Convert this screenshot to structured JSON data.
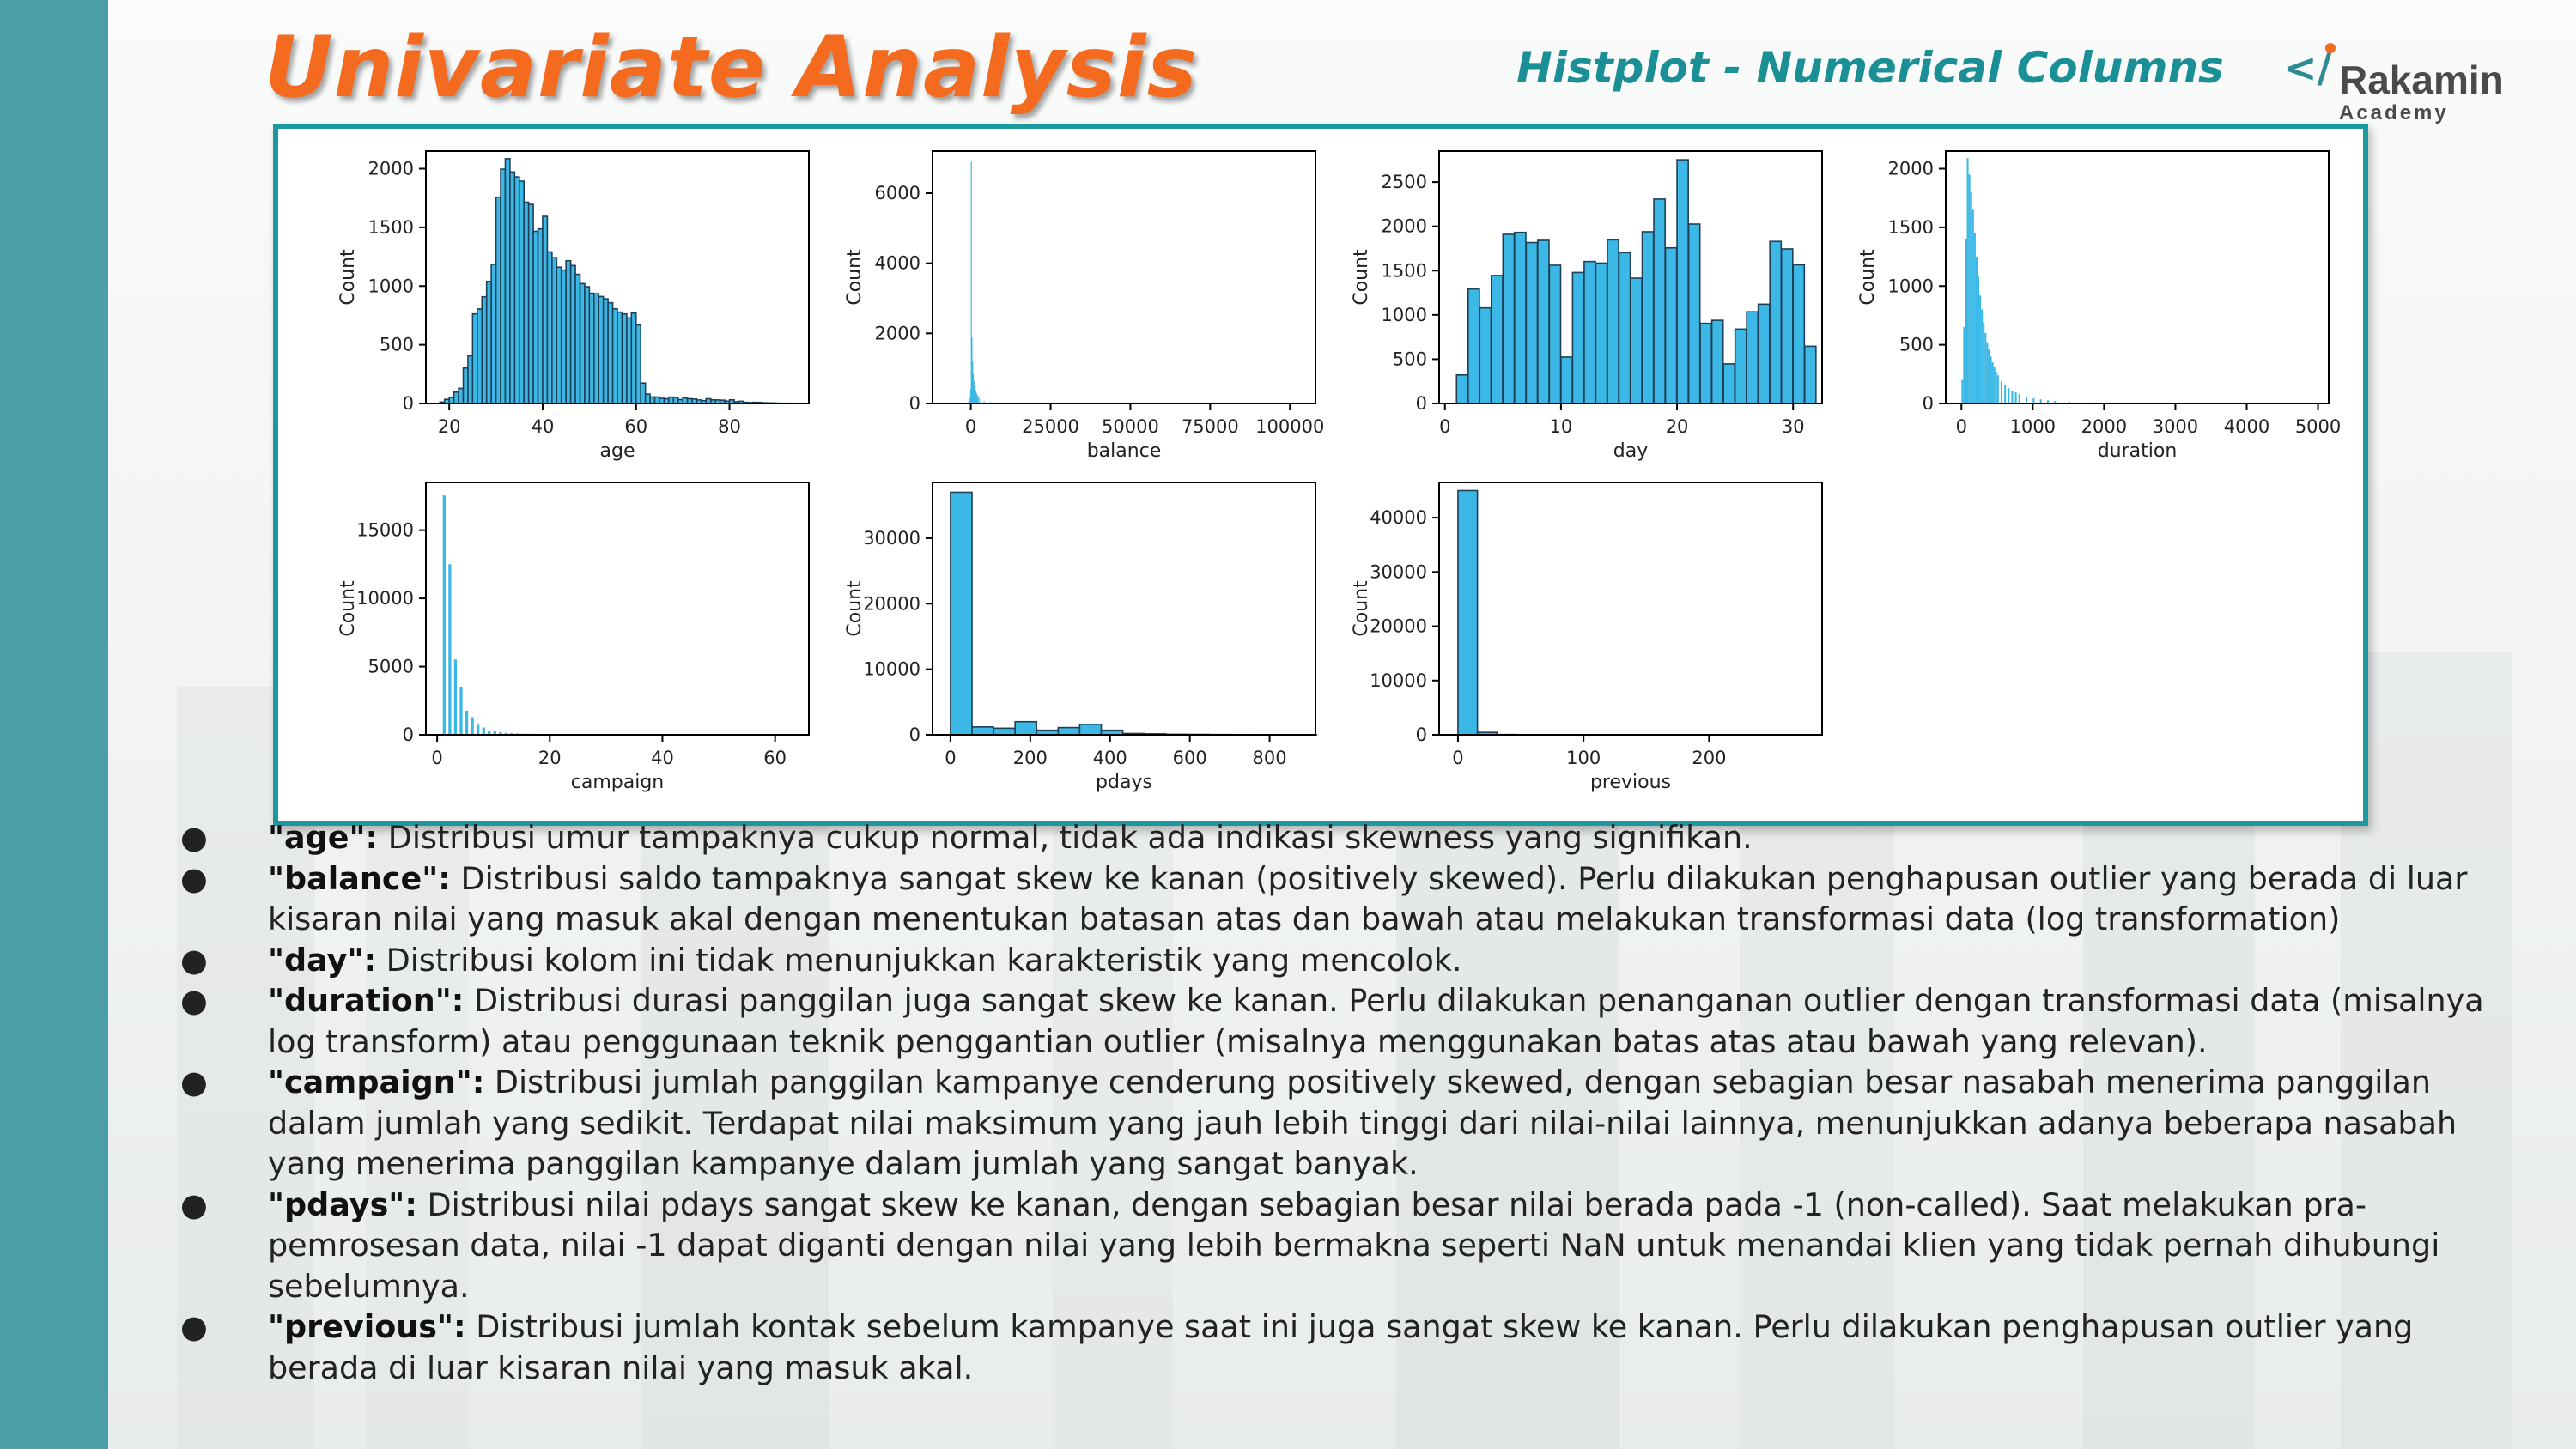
{
  "slide": {
    "title": "Univariate Analysis",
    "subtitle": "Histplot - Numerical Columns",
    "brand": {
      "mark": "</",
      "name": "Rakamin",
      "sub": "Academy",
      "accent": "#f46a1f",
      "teal": "#1a9a9f"
    }
  },
  "chart_data": [
    {
      "type": "bar",
      "name": "age",
      "xlabel": "age",
      "ylabel": "Count",
      "xlim": [
        15,
        97
      ],
      "ylim": [
        0,
        2150
      ],
      "xticks": [
        20,
        40,
        60,
        80
      ],
      "yticks": [
        0,
        500,
        1000,
        1500,
        2000
      ],
      "bin_width": 1.0,
      "x": [
        18,
        19,
        20,
        21,
        22,
        23,
        24,
        25,
        26,
        27,
        28,
        29,
        30,
        31,
        32,
        33,
        34,
        35,
        36,
        37,
        38,
        39,
        40,
        41,
        42,
        43,
        44,
        45,
        46,
        47,
        48,
        49,
        50,
        51,
        52,
        53,
        54,
        55,
        56,
        57,
        58,
        59,
        60,
        61,
        62,
        63,
        64,
        65,
        66,
        67,
        68,
        69,
        70,
        71,
        72,
        73,
        74,
        75,
        76,
        77,
        78,
        79,
        80,
        81,
        82,
        83,
        84,
        85,
        86,
        87,
        88,
        89,
        90,
        91,
        92,
        93,
        94
      ],
      "values": [
        12,
        35,
        50,
        97,
        129,
        302,
        405,
        763,
        805,
        909,
        1040,
        1185,
        1757,
        1996,
        2085,
        1972,
        1930,
        1894,
        1715,
        1696,
        1466,
        1487,
        1594,
        1291,
        1242,
        1161,
        1136,
        1216,
        1175,
        1100,
        1021,
        994,
        939,
        935,
        911,
        891,
        858,
        806,
        778,
        762,
        729,
        770,
        669,
        174,
        80,
        55,
        55,
        44,
        40,
        54,
        52,
        33,
        47,
        40,
        38,
        30,
        24,
        40,
        31,
        30,
        28,
        20,
        31,
        15,
        19,
        10,
        8,
        10,
        9,
        6,
        5,
        4,
        3,
        2,
        2,
        1,
        1
      ]
    },
    {
      "type": "bar",
      "name": "balance",
      "xlabel": "balance",
      "ylabel": "Count",
      "xlim": [
        -12000,
        108000
      ],
      "ylim": [
        0,
        7200
      ],
      "xticks": [
        0,
        25000,
        50000,
        75000,
        100000
      ],
      "yticks": [
        0,
        2000,
        4000,
        6000
      ],
      "bin_width": 200,
      "x": [
        -800,
        -600,
        -400,
        -200,
        0,
        200,
        400,
        600,
        800,
        1000,
        1200,
        1400,
        1600,
        1800,
        2000,
        2400,
        3000,
        4000,
        6000,
        9000
      ],
      "values": [
        30,
        70,
        160,
        420,
        6900,
        1880,
        1200,
        850,
        650,
        520,
        420,
        350,
        300,
        250,
        220,
        170,
        120,
        70,
        35,
        15
      ]
    },
    {
      "type": "bar",
      "name": "day",
      "xlabel": "day",
      "ylabel": "Count",
      "xlim": [
        -0.5,
        32.5
      ],
      "ylim": [
        0,
        2850
      ],
      "xticks": [
        0,
        10,
        20,
        30
      ],
      "yticks": [
        0,
        500,
        1000,
        1500,
        2000,
        2500
      ],
      "bin_width": 0.97,
      "x": [
        1,
        2,
        3,
        4,
        5,
        6,
        7,
        8,
        9,
        10,
        11,
        12,
        13,
        14,
        15,
        16,
        17,
        18,
        19,
        20,
        21,
        22,
        23,
        24,
        25,
        26,
        27,
        28,
        29,
        30,
        31
      ],
      "values": [
        322,
        1293,
        1079,
        1445,
        1910,
        1932,
        1817,
        1842,
        1561,
        524,
        1479,
        1603,
        1585,
        1848,
        1703,
        1415,
        1939,
        2308,
        1757,
        2752,
        2026,
        905,
        939,
        447,
        840,
        1035,
        1121,
        1830,
        1745,
        1566,
        646
      ]
    },
    {
      "type": "bar",
      "name": "duration",
      "xlabel": "duration",
      "ylabel": "Count",
      "xlim": [
        -220,
        5150
      ],
      "ylim": [
        0,
        2150
      ],
      "xticks": [
        0,
        1000,
        2000,
        3000,
        4000,
        5000
      ],
      "yticks": [
        0,
        500,
        1000,
        1500,
        2000
      ],
      "bin_width": 25,
      "x": [
        0,
        25,
        50,
        75,
        100,
        125,
        150,
        175,
        200,
        225,
        250,
        275,
        300,
        325,
        350,
        375,
        400,
        425,
        450,
        475,
        500,
        550,
        600,
        650,
        700,
        750,
        800,
        900,
        1000,
        1100,
        1200,
        1300,
        1500,
        1800,
        2200,
        3000
      ],
      "values": [
        200,
        650,
        1400,
        2090,
        1950,
        1800,
        1650,
        1450,
        1250,
        1080,
        920,
        800,
        690,
        600,
        520,
        460,
        400,
        350,
        310,
        270,
        240,
        190,
        160,
        130,
        110,
        95,
        80,
        60,
        45,
        35,
        28,
        22,
        15,
        10,
        6,
        3
      ]
    },
    {
      "type": "bar",
      "name": "campaign",
      "xlabel": "campaign",
      "ylabel": "Count",
      "xlim": [
        -2,
        66
      ],
      "ylim": [
        0,
        18500
      ],
      "xticks": [
        0,
        20,
        40,
        60
      ],
      "yticks": [
        0,
        5000,
        10000,
        15000
      ],
      "bin_width": 0.5,
      "x": [
        1,
        2,
        3,
        4,
        5,
        6,
        7,
        8,
        9,
        10,
        11,
        12,
        13,
        14,
        15,
        16,
        17,
        18,
        19,
        20,
        22,
        25,
        30,
        35,
        40,
        50,
        58,
        63
      ],
      "values": [
        17544,
        12505,
        5521,
        3522,
        1764,
        1291,
        735,
        540,
        327,
        266,
        201,
        155,
        133,
        93,
        84,
        79,
        69,
        51,
        44,
        43,
        30,
        22,
        10,
        8,
        5,
        3,
        2,
        1
      ]
    },
    {
      "type": "bar",
      "name": "pdays",
      "xlabel": "pdays",
      "ylabel": "Count",
      "xlim": [
        -45,
        915
      ],
      "ylim": [
        0,
        38500
      ],
      "xticks": [
        0,
        200,
        400,
        600,
        800
      ],
      "yticks": [
        0,
        10000,
        20000,
        30000
      ],
      "bin_width": 54,
      "x": [
        0,
        54,
        108,
        162,
        216,
        270,
        324,
        378,
        432,
        486,
        540,
        594,
        648,
        702,
        756,
        810,
        864
      ],
      "values": [
        37000,
        1200,
        1000,
        2000,
        700,
        1100,
        1600,
        700,
        200,
        150,
        80,
        60,
        40,
        30,
        20,
        10,
        5
      ]
    },
    {
      "type": "bar",
      "name": "previous",
      "xlabel": "previous",
      "ylabel": "Count",
      "xlim": [
        -15,
        290
      ],
      "ylim": [
        0,
        46500
      ],
      "xticks": [
        0,
        100,
        200
      ],
      "yticks": [
        0,
        10000,
        20000,
        30000,
        40000
      ],
      "bin_width": 15.5,
      "x": [
        0,
        15.5,
        31,
        46.5,
        62,
        77.5,
        93,
        108.5,
        124,
        139.5,
        155,
        170.5,
        186,
        201.5,
        217,
        232.5,
        248,
        263.5
      ],
      "values": [
        45000,
        450,
        50,
        20,
        10,
        5,
        3,
        2,
        1,
        1,
        1,
        1,
        0,
        0,
        0,
        0,
        0,
        1
      ]
    }
  ],
  "notes": [
    {
      "key": "\"age\":",
      "text": " Distribusi umur tampaknya cukup normal, tidak ada indikasi skewness yang signifikan."
    },
    {
      "key": "\"balance\":",
      "text": " Distribusi saldo tampaknya sangat skew ke kanan (positively skewed). Perlu dilakukan penghapusan outlier yang berada di luar kisaran nilai yang masuk akal dengan menentukan batasan atas dan bawah atau melakukan transformasi data (log transformation)"
    },
    {
      "key": "\"day\":",
      "text": " Distribusi kolom ini tidak menunjukkan karakteristik yang mencolok."
    },
    {
      "key": "\"duration\":",
      "text": " Distribusi durasi panggilan juga sangat skew ke kanan. Perlu dilakukan penanganan outlier dengan transformasi data (misalnya log transform) atau penggunaan teknik penggantian outlier (misalnya menggunakan batas atas atau bawah yang relevan)."
    },
    {
      "key": "\"campaign\":",
      "text": " Distribusi jumlah panggilan kampanye cenderung positively skewed, dengan sebagian besar nasabah menerima panggilan dalam jumlah yang sedikit. Terdapat nilai maksimum yang jauh lebih tinggi dari nilai-nilai lainnya, menunjukkan adanya beberapa nasabah yang menerima panggilan kampanye dalam jumlah yang sangat banyak."
    },
    {
      "key": "\"pdays\":",
      "text": " Distribusi nilai pdays sangat skew ke kanan, dengan sebagian besar nilai berada pada -1 (non-called). Saat melakukan pra-pemrosesan data, nilai -1 dapat diganti dengan nilai yang lebih bermakna seperti NaN untuk menandai klien yang tidak pernah dihubungi sebelumnya."
    },
    {
      "key": "\"previous\":",
      "text": " Distribusi jumlah kontak sebelum kampanye saat ini juga sangat skew ke kanan. Perlu dilakukan penghapusan outlier yang berada di luar kisaran nilai yang masuk akal."
    }
  ],
  "bullet": "●",
  "colors": {
    "bar_fill": "#3cb8e6",
    "bar_edge": "#1f3f57",
    "axis": "#000000",
    "tick_text": "#222222"
  }
}
